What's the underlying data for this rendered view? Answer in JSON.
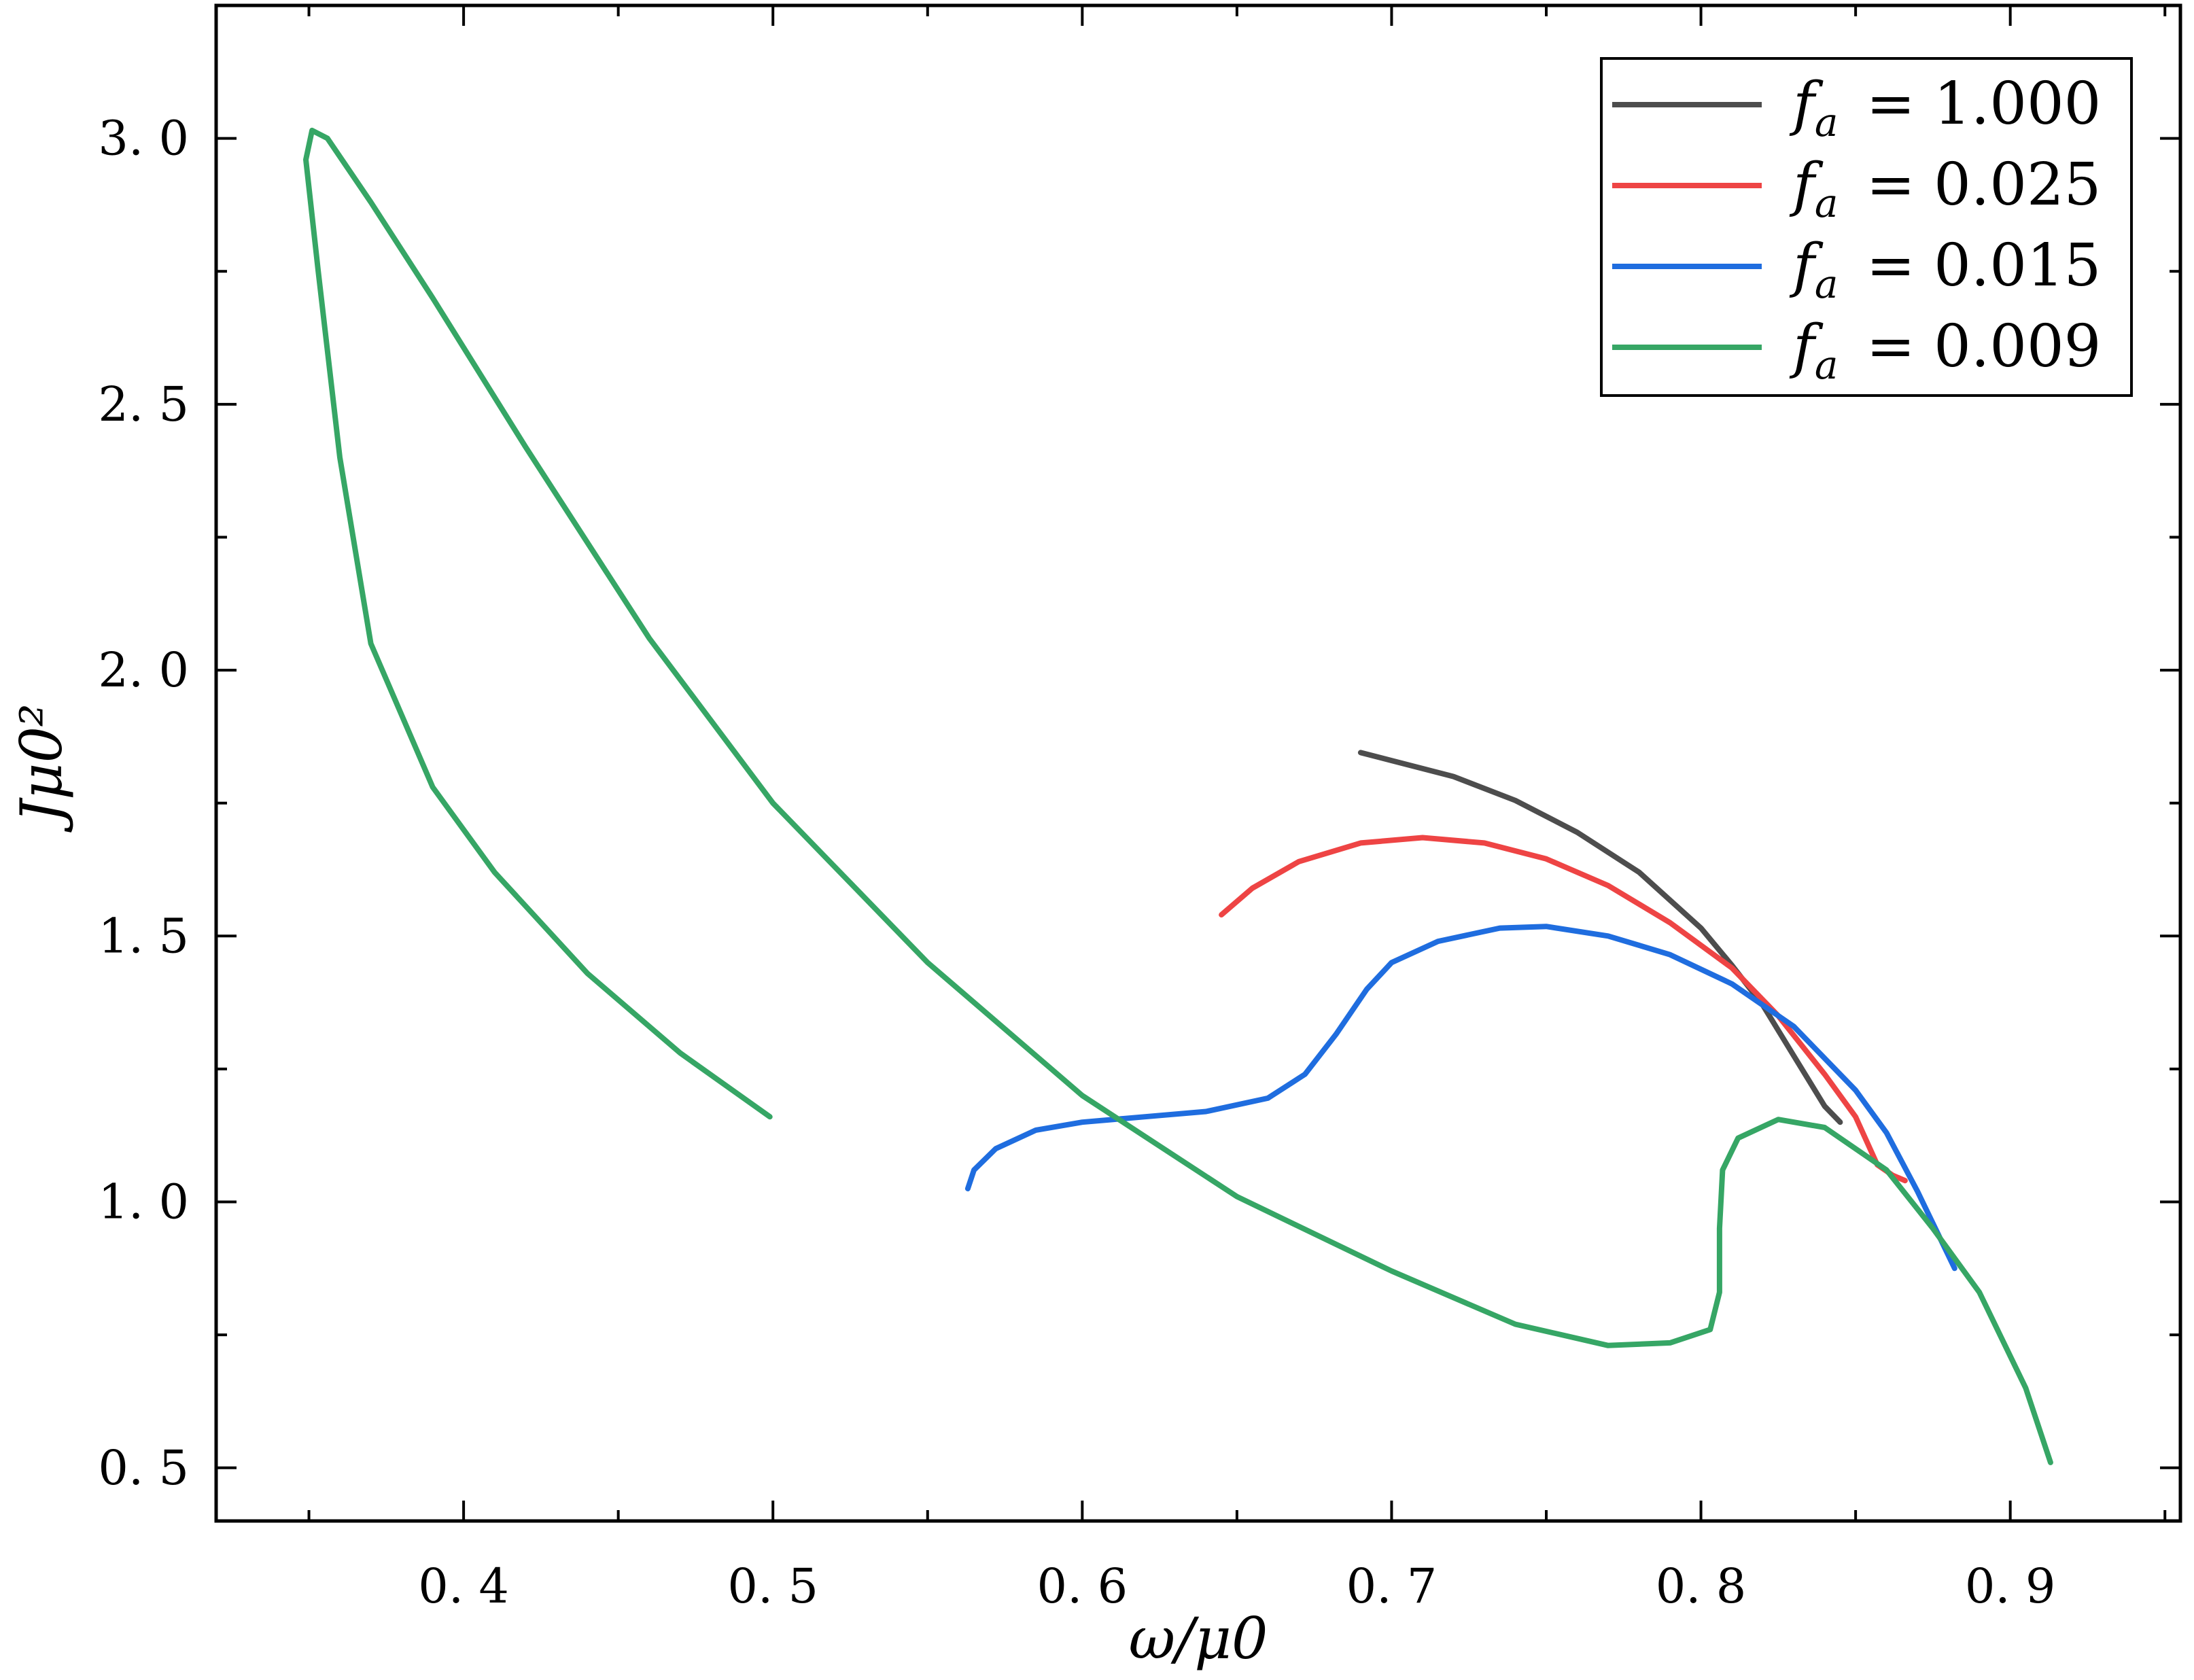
{
  "chart_data": {
    "type": "line",
    "xlabel": "ω/μ0",
    "ylabel": "Jμ0²",
    "xlim": [
      0.32,
      0.955
    ],
    "ylim": [
      0.4,
      3.25
    ],
    "xticks": [
      0.4,
      0.5,
      0.6,
      0.7,
      0.8,
      0.9
    ],
    "xtick_labels": [
      "0. 4",
      "0. 5",
      "0. 6",
      "0. 7",
      "0. 8",
      "0. 9"
    ],
    "yticks": [
      0.5,
      1.0,
      1.5,
      2.0,
      2.5,
      3.0
    ],
    "ytick_labels": [
      "0. 5",
      "1. 0",
      "1. 5",
      "2. 0",
      "2. 5",
      "3. 0"
    ],
    "grid": false,
    "legend_position": "top-right",
    "series": [
      {
        "name": "f_a = 1.000",
        "legend_var": "f",
        "legend_sub": "a",
        "legend_value": "= 1.000",
        "color": "#4d4d4d",
        "points": [
          [
            0.69,
            1.845
          ],
          [
            0.7,
            1.83
          ],
          [
            0.72,
            1.8
          ],
          [
            0.74,
            1.755
          ],
          [
            0.76,
            1.695
          ],
          [
            0.78,
            1.62
          ],
          [
            0.8,
            1.515
          ],
          [
            0.81,
            1.445
          ],
          [
            0.82,
            1.37
          ],
          [
            0.83,
            1.275
          ],
          [
            0.84,
            1.18
          ],
          [
            0.845,
            1.15
          ]
        ]
      },
      {
        "name": "f_a = 0.025",
        "legend_var": "f",
        "legend_sub": "a",
        "legend_value": "= 0.025",
        "color": "#ee4444",
        "points": [
          [
            0.645,
            1.54
          ],
          [
            0.655,
            1.59
          ],
          [
            0.67,
            1.64
          ],
          [
            0.69,
            1.675
          ],
          [
            0.71,
            1.685
          ],
          [
            0.73,
            1.675
          ],
          [
            0.75,
            1.645
          ],
          [
            0.77,
            1.595
          ],
          [
            0.79,
            1.525
          ],
          [
            0.81,
            1.44
          ],
          [
            0.825,
            1.35
          ],
          [
            0.84,
            1.24
          ],
          [
            0.85,
            1.16
          ],
          [
            0.857,
            1.07
          ],
          [
            0.862,
            1.05
          ],
          [
            0.866,
            1.04
          ]
        ]
      },
      {
        "name": "f_a = 0.015",
        "legend_var": "f",
        "legend_sub": "a",
        "legend_value": "= 0.015",
        "color": "#1f6ddf",
        "points": [
          [
            0.563,
            1.025
          ],
          [
            0.565,
            1.06
          ],
          [
            0.572,
            1.1
          ],
          [
            0.585,
            1.135
          ],
          [
            0.6,
            1.15
          ],
          [
            0.62,
            1.16
          ],
          [
            0.64,
            1.17
          ],
          [
            0.66,
            1.195
          ],
          [
            0.672,
            1.24
          ],
          [
            0.682,
            1.315
          ],
          [
            0.692,
            1.4
          ],
          [
            0.7,
            1.45
          ],
          [
            0.715,
            1.49
          ],
          [
            0.735,
            1.515
          ],
          [
            0.75,
            1.518
          ],
          [
            0.77,
            1.5
          ],
          [
            0.79,
            1.465
          ],
          [
            0.81,
            1.41
          ],
          [
            0.83,
            1.33
          ],
          [
            0.85,
            1.21
          ],
          [
            0.86,
            1.13
          ],
          [
            0.87,
            1.02
          ],
          [
            0.882,
            0.875
          ]
        ]
      },
      {
        "name": "f_a = 0.009",
        "legend_var": "f",
        "legend_sub": "a",
        "legend_value": "= 0.009",
        "color": "#36a665",
        "points": [
          [
            0.499,
            1.16
          ],
          [
            0.47,
            1.28
          ],
          [
            0.44,
            1.43
          ],
          [
            0.41,
            1.62
          ],
          [
            0.39,
            1.78
          ],
          [
            0.37,
            2.05
          ],
          [
            0.36,
            2.4
          ],
          [
            0.353,
            2.75
          ],
          [
            0.349,
            2.96
          ],
          [
            0.351,
            3.015
          ],
          [
            0.356,
            3.0
          ],
          [
            0.37,
            2.88
          ],
          [
            0.39,
            2.7
          ],
          [
            0.42,
            2.42
          ],
          [
            0.46,
            2.06
          ],
          [
            0.5,
            1.75
          ],
          [
            0.55,
            1.45
          ],
          [
            0.6,
            1.2
          ],
          [
            0.65,
            1.01
          ],
          [
            0.7,
            0.87
          ],
          [
            0.74,
            0.77
          ],
          [
            0.77,
            0.73
          ],
          [
            0.79,
            0.735
          ],
          [
            0.803,
            0.76
          ],
          [
            0.806,
            0.83
          ],
          [
            0.806,
            0.95
          ],
          [
            0.807,
            1.06
          ],
          [
            0.812,
            1.12
          ],
          [
            0.825,
            1.155
          ],
          [
            0.84,
            1.14
          ],
          [
            0.86,
            1.06
          ],
          [
            0.875,
            0.95
          ],
          [
            0.89,
            0.83
          ],
          [
            0.905,
            0.65
          ],
          [
            0.913,
            0.51
          ]
        ]
      }
    ]
  }
}
